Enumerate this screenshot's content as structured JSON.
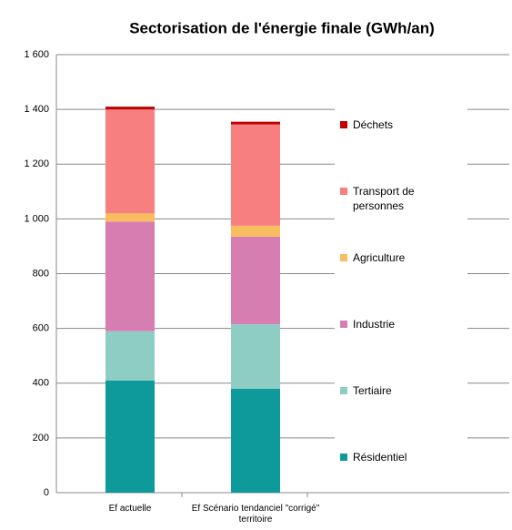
{
  "chart_data": {
    "type": "stacked_bar",
    "title": "Sectorisation de l'énergie finale (GWh/an)",
    "categories": [
      "Ef actuelle",
      "Ef Scénario tendanciel \"corrigé\" territoire"
    ],
    "series": [
      {
        "name": "Résidentiel",
        "color": "#0e9a9a",
        "values": [
          410,
          380
        ]
      },
      {
        "name": "Tertiaire",
        "color": "#8ecdc4",
        "values": [
          180,
          235
        ]
      },
      {
        "name": "Industrie",
        "color": "#d67eb1",
        "values": [
          400,
          320
        ]
      },
      {
        "name": "Agriculture",
        "color": "#f9bc5e",
        "values": [
          30,
          40
        ]
      },
      {
        "name": "Transport de personnes",
        "color": "#f77f7f",
        "values": [
          380,
          370
        ]
      },
      {
        "name": "Déchets",
        "color": "#c00000",
        "values": [
          10,
          10
        ]
      }
    ],
    "ylim": [
      0,
      1600
    ],
    "yticks": [
      0,
      200,
      400,
      600,
      800,
      {
        "value": 1000,
        "label": "1 000"
      },
      {
        "value": 1200,
        "label": "1 200"
      },
      {
        "value": 1400,
        "label": "1 400"
      },
      {
        "value": 1600,
        "label": "1 600"
      }
    ],
    "grid": true,
    "legend": "right"
  }
}
